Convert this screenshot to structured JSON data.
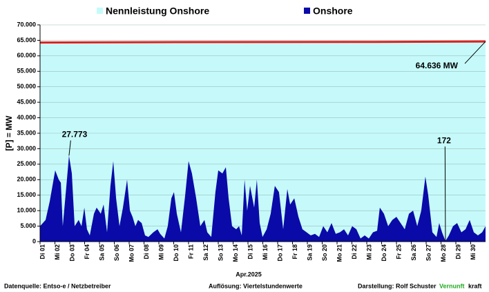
{
  "chart_data": {
    "type": "area",
    "ylabel": "[P] = MW",
    "xlabel": "Apr.2025",
    "xlim": [
      0,
      30
    ],
    "ylim": [
      0,
      70000
    ],
    "yticks": [
      {
        "value": 0,
        "label": "0"
      },
      {
        "value": 5000,
        "label": "5.000"
      },
      {
        "value": 10000,
        "label": "10.000"
      },
      {
        "value": 15000,
        "label": "15.000"
      },
      {
        "value": 20000,
        "label": "20.000"
      },
      {
        "value": 25000,
        "label": "25.000"
      },
      {
        "value": 30000,
        "label": "30.000"
      },
      {
        "value": 35000,
        "label": "35.000"
      },
      {
        "value": 40000,
        "label": "40.000"
      },
      {
        "value": 45000,
        "label": "45.000"
      },
      {
        "value": 50000,
        "label": "50.000"
      },
      {
        "value": 55000,
        "label": "55.000"
      },
      {
        "value": 60000,
        "label": "60.000"
      },
      {
        "value": 65000,
        "label": "65.000"
      },
      {
        "value": 70000,
        "label": "70.000"
      }
    ],
    "xticks": [
      {
        "value": 0,
        "label": "Di 01"
      },
      {
        "value": 1,
        "label": "Mi 02"
      },
      {
        "value": 2,
        "label": "Do 03"
      },
      {
        "value": 3,
        "label": "Fr 04"
      },
      {
        "value": 4,
        "label": "Sa 05"
      },
      {
        "value": 5,
        "label": "So 06"
      },
      {
        "value": 6,
        "label": "Mo 07"
      },
      {
        "value": 7,
        "label": "Di 08"
      },
      {
        "value": 8,
        "label": "Mi 09"
      },
      {
        "value": 9,
        "label": "Do 10"
      },
      {
        "value": 10,
        "label": "Fr 11"
      },
      {
        "value": 11,
        "label": "Sa 12"
      },
      {
        "value": 12,
        "label": "So 13"
      },
      {
        "value": 13,
        "label": "Mo 14"
      },
      {
        "value": 14,
        "label": "Di 15"
      },
      {
        "value": 15,
        "label": "Mi 16"
      },
      {
        "value": 16,
        "label": "Do 17"
      },
      {
        "value": 17,
        "label": "Fr 18"
      },
      {
        "value": 18,
        "label": "Sa 19"
      },
      {
        "value": 19,
        "label": "So 20"
      },
      {
        "value": 20,
        "label": "Mo 21"
      },
      {
        "value": 21,
        "label": "Di 22"
      },
      {
        "value": 22,
        "label": "Mi 23"
      },
      {
        "value": 23,
        "label": "Do 24"
      },
      {
        "value": 24,
        "label": "Fr 25"
      },
      {
        "value": 25,
        "label": "Sa 26"
      },
      {
        "value": 26,
        "label": "So 27"
      },
      {
        "value": 27,
        "label": "Mo 28"
      },
      {
        "value": 28,
        "label": "Di 29"
      },
      {
        "value": 29,
        "label": "Mi 30"
      }
    ],
    "grid": true,
    "legend": "top",
    "series": [
      {
        "name": "Nennleistung Onshore",
        "color": "#c6fafa",
        "line_color": "#e0201c",
        "x": [
          0,
          7.5,
          15,
          22.5,
          30
        ],
        "values": [
          64300,
          64400,
          64450,
          64500,
          64636
        ]
      },
      {
        "name": "Onshore",
        "color": "#0a0aa8",
        "x": [
          0,
          0.37,
          0.65,
          1.02,
          1.26,
          1.4,
          1.53,
          1.77,
          1.95,
          2.14,
          2.33,
          2.6,
          2.79,
          2.98,
          3.16,
          3.35,
          3.63,
          3.81,
          4.09,
          4.28,
          4.51,
          4.74,
          4.93,
          5.12,
          5.35,
          5.58,
          5.86,
          6.05,
          6.23,
          6.42,
          6.6,
          6.84,
          7.07,
          7.3,
          7.63,
          7.91,
          8.09,
          8.37,
          8.6,
          8.84,
          9.02,
          9.21,
          9.49,
          9.77,
          10,
          10.23,
          10.51,
          10.79,
          11.07,
          11.26,
          11.53,
          11.81,
          12,
          12.28,
          12.51,
          12.7,
          12.93,
          13.21,
          13.4,
          13.58,
          13.77,
          13.95,
          14.14,
          14.42,
          14.6,
          14.79,
          14.98,
          15.26,
          15.53,
          15.81,
          16.09,
          16.37,
          16.65,
          16.84,
          17.12,
          17.4,
          17.67,
          17.95,
          18.23,
          18.51,
          18.79,
          19.07,
          19.35,
          19.63,
          19.91,
          20.19,
          20.47,
          20.74,
          21.02,
          21.3,
          21.58,
          21.86,
          22.14,
          22.42,
          22.7,
          22.88,
          23.16,
          23.44,
          23.72,
          24,
          24.28,
          24.56,
          24.84,
          25.12,
          25.4,
          25.67,
          25.95,
          26.14,
          26.42,
          26.7,
          26.88,
          27.07,
          27.3,
          27.53,
          27.81,
          28.09,
          28.37,
          28.65,
          28.93,
          29.21,
          29.49,
          29.77,
          30
        ],
        "values": [
          5000,
          7000,
          13000,
          23000,
          20000,
          19000,
          5000,
          18000,
          27773,
          22000,
          5000,
          7000,
          5000,
          11000,
          4000,
          2000,
          9000,
          11000,
          9000,
          12000,
          3000,
          18000,
          26000,
          14000,
          5000,
          11000,
          20000,
          10000,
          8000,
          5000,
          7000,
          6000,
          2000,
          1500,
          3000,
          4000,
          2500,
          1000,
          5000,
          14000,
          16000,
          9000,
          3000,
          15000,
          26000,
          22000,
          14000,
          5000,
          7000,
          3000,
          1500,
          16000,
          23000,
          22000,
          24000,
          14000,
          5000,
          4000,
          5000,
          2000,
          20000,
          10000,
          18000,
          11000,
          20000,
          6000,
          1500,
          4000,
          9000,
          18000,
          16000,
          4000,
          17000,
          12000,
          14000,
          8000,
          4000,
          3000,
          2000,
          2500,
          1500,
          5000,
          3000,
          6000,
          2500,
          3000,
          4000,
          2000,
          5000,
          4000,
          1000,
          2000,
          1000,
          3000,
          3500,
          11000,
          9000,
          5000,
          7000,
          8000,
          6000,
          4000,
          9000,
          10000,
          5000,
          10000,
          21000,
          15000,
          3000,
          1500,
          6000,
          3000,
          172,
          2000,
          5000,
          6000,
          3000,
          4000,
          7000,
          3000,
          2000,
          3000,
          5000
        ]
      }
    ],
    "annotations": [
      {
        "text": "27.773",
        "x": 1.95,
        "y": 27773
      },
      {
        "text": "172",
        "x": 27.3,
        "y": 172
      },
      {
        "text": "64.636 MW",
        "x": 30,
        "y": 64636
      }
    ],
    "footnotes": [
      "Datenquelle:  Entso-e  / Netzbetreiber",
      "Auflösung: Viertelstundenwerte",
      "Darstellung:  Rolf Schuster"
    ],
    "brand": [
      "Vernunft",
      "kraft"
    ]
  }
}
